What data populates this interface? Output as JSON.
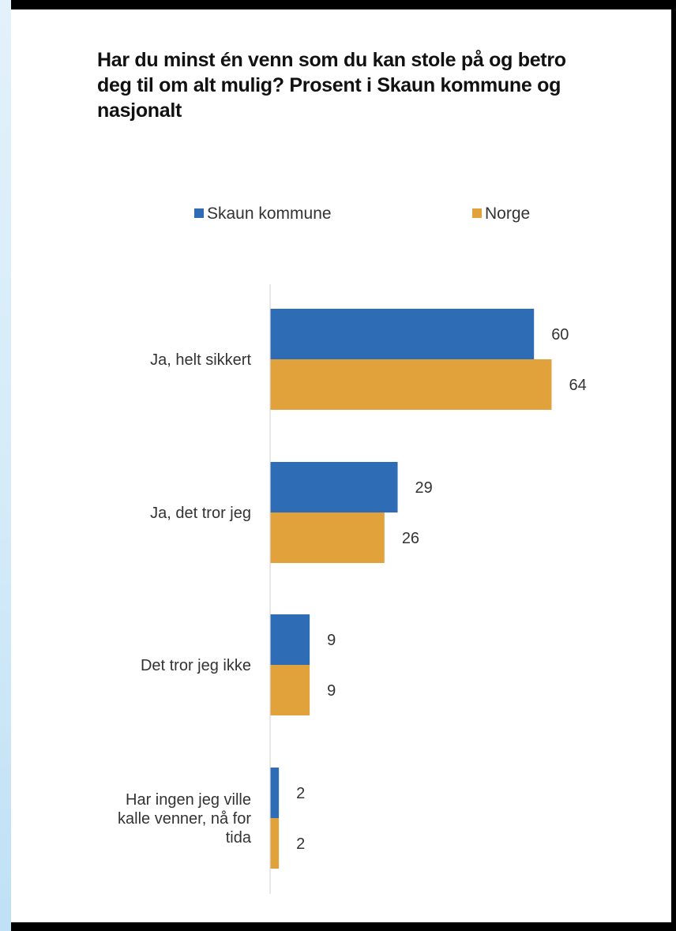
{
  "chart_data": {
    "type": "bar",
    "orientation": "horizontal",
    "title": "Har du minst én venn som du kan stole på og betro deg til om alt mulig? Prosent i Skaun kommune og nasjonalt",
    "categories": [
      [
        "Ja, helt sikkert"
      ],
      [
        "Ja, det tror jeg"
      ],
      [
        "Det tror jeg ikke"
      ],
      [
        "Har ingen jeg ville",
        "kalle venner, nå for",
        "tida"
      ]
    ],
    "series": [
      {
        "name": "Skaun kommune",
        "color": "#2e6db5",
        "values": [
          60,
          29,
          9,
          2
        ]
      },
      {
        "name": "Norge",
        "color": "#e2a23b",
        "values": [
          64,
          26,
          9,
          2
        ]
      }
    ],
    "xlim": [
      0,
      100
    ],
    "legend_position": "top",
    "grid": false,
    "data_labels": true
  }
}
